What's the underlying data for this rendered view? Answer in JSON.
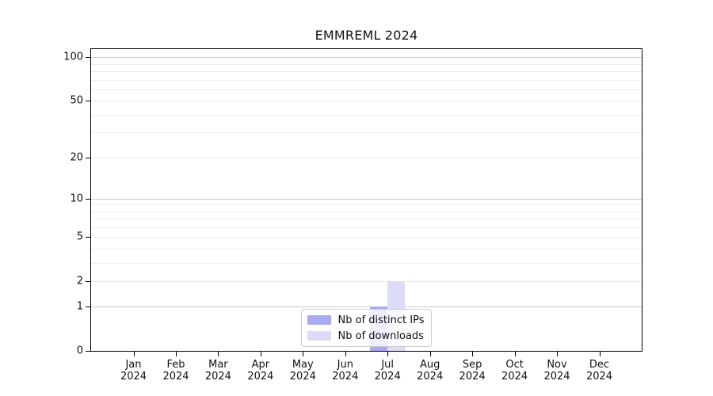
{
  "figure": {
    "title": "EMMREML 2024"
  },
  "colors": {
    "distinct_ips_bar": "#aaaaf0",
    "downloads_bar": "#dcdcf8",
    "grid_decade": "#c9c9c9",
    "grid_minor": "#ececec",
    "axis_line": "#000000",
    "legend_border": "#cccccc",
    "background": "#ffffff"
  },
  "legend": {
    "items": [
      {
        "label": "Nb of distinct IPs",
        "color": "#aaaaf0"
      },
      {
        "label": "Nb of downloads",
        "color": "#dcdcf8"
      }
    ]
  },
  "chart_data": {
    "type": "bar",
    "title": "EMMREML 2024",
    "categories": [
      "Jan 2024",
      "Feb 2024",
      "Mar 2024",
      "Apr 2024",
      "May 2024",
      "Jun 2024",
      "Jul 2024",
      "Aug 2024",
      "Sep 2024",
      "Oct 2024",
      "Nov 2024",
      "Dec 2024"
    ],
    "x_tick_labels": [
      [
        "Jan",
        "2024"
      ],
      [
        "Feb",
        "2024"
      ],
      [
        "Mar",
        "2024"
      ],
      [
        "Apr",
        "2024"
      ],
      [
        "May",
        "2024"
      ],
      [
        "Jun",
        "2024"
      ],
      [
        "Jul",
        "2024"
      ],
      [
        "Aug",
        "2024"
      ],
      [
        "Sep",
        "2024"
      ],
      [
        "Oct",
        "2024"
      ],
      [
        "Nov",
        "2024"
      ],
      [
        "Dec",
        "2024"
      ]
    ],
    "series": [
      {
        "name": "Nb of distinct IPs",
        "color": "#aaaaf0",
        "values": [
          0,
          0,
          0,
          0,
          0,
          0,
          1,
          0,
          0,
          0,
          0,
          0
        ]
      },
      {
        "name": "Nb of downloads",
        "color": "#dcdcf8",
        "values": [
          0,
          0,
          0,
          0,
          0,
          0,
          2,
          0,
          0,
          0,
          0,
          0
        ]
      }
    ],
    "y_axis": {
      "scale": "log10(1+value)",
      "major_ticks": [
        0,
        1,
        2,
        5,
        10,
        20,
        50,
        100
      ],
      "minor_gridlines": [
        3,
        4,
        6,
        7,
        8,
        9,
        30,
        40,
        60,
        70,
        80,
        90
      ],
      "top_value": 114
    },
    "ylabel": "",
    "xlabel": "",
    "grid": "horizontal",
    "legend_position": "lower center"
  }
}
